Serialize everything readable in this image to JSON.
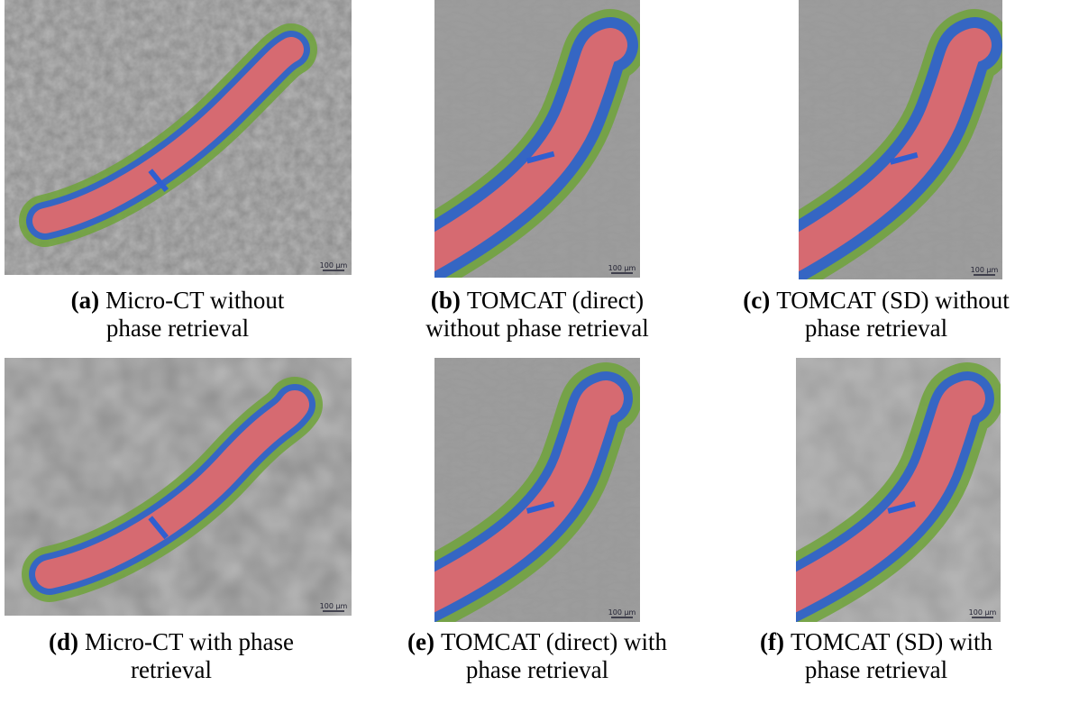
{
  "panels": [
    {
      "label": "(a)",
      "caption": [
        "Micro-CT without",
        "phase retrieval"
      ],
      "scale_bar": "100 µm"
    },
    {
      "label": "(b)",
      "caption": [
        "TOMCAT (direct)",
        "without phase retrieval"
      ],
      "scale_bar": "100 µm"
    },
    {
      "label": "(c)",
      "caption": [
        "TOMCAT (SD) without",
        "phase retrieval"
      ],
      "scale_bar": "100 µm"
    },
    {
      "label": "(d)",
      "caption": [
        "Micro-CT with phase",
        "retrieval"
      ],
      "scale_bar": "100 µm"
    },
    {
      "label": "(e)",
      "caption": [
        "TOMCAT (direct) with",
        "phase retrieval"
      ],
      "scale_bar": "100 µm"
    },
    {
      "label": "(f)",
      "caption": [
        "TOMCAT (SD) with",
        "phase retrieval"
      ],
      "scale_bar": "100 µm"
    }
  ]
}
